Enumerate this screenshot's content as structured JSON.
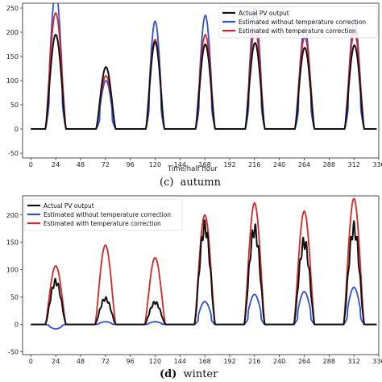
{
  "chart_data": [
    {
      "type": "line",
      "caption_letter": "(c)",
      "caption_word": "autumn",
      "xlabel": "Time/half hour",
      "ylabel": "",
      "xlim": [
        -8,
        336
      ],
      "ylim": [
        -60,
        260
      ],
      "xticks": [
        0,
        24,
        48,
        72,
        96,
        120,
        144,
        168,
        192,
        216,
        240,
        264,
        288,
        312,
        336
      ],
      "xtick_labels": [
        "0",
        "24",
        "48",
        "72",
        "96",
        "120",
        "144",
        "168",
        "192",
        "216",
        "240",
        "264",
        "288",
        "312",
        "336"
      ],
      "yticks": [
        -50,
        0,
        50,
        100,
        150,
        200,
        250
      ],
      "ytick_labels": [
        "-50",
        "0",
        "50",
        "100",
        "150",
        "200",
        "250"
      ],
      "legend_position": "top-right",
      "legend": [
        "Actual PV output",
        "Estimated without temperature correction",
        "Estimated with temperature correction"
      ],
      "series": [
        {
          "name": "Actual PV output",
          "color": "#111111",
          "days": [
            {
              "s": 14,
              "e": 34,
              "p": 195
            },
            {
              "s": 63,
              "e": 82,
              "p": 128
            },
            {
              "s": 111,
              "e": 129,
              "p": 180
            },
            {
              "s": 159,
              "e": 178,
              "p": 175
            },
            {
              "s": 207,
              "e": 226,
              "p": 178
            },
            {
              "s": 255,
              "e": 274,
              "p": 168
            },
            {
              "s": 303,
              "e": 322,
              "p": 173
            }
          ]
        },
        {
          "name": "Estimated without temperature correction",
          "color": "#2e4fd6",
          "days": [
            {
              "s": 14,
              "e": 34,
              "p": 285
            },
            {
              "s": 63,
              "e": 82,
              "p": 100
            },
            {
              "s": 111,
              "e": 129,
              "p": 223
            },
            {
              "s": 159,
              "e": 178,
              "p": 235
            },
            {
              "s": 207,
              "e": 226,
              "p": 250
            },
            {
              "s": 255,
              "e": 274,
              "p": 210
            },
            {
              "s": 303,
              "e": 322,
              "p": 225
            }
          ]
        },
        {
          "name": "Estimated with temperature correction",
          "color": "#d62728",
          "days": [
            {
              "s": 14,
              "e": 34,
              "p": 240
            },
            {
              "s": 63,
              "e": 82,
              "p": 110
            },
            {
              "s": 111,
              "e": 129,
              "p": 185
            },
            {
              "s": 159,
              "e": 178,
              "p": 195
            },
            {
              "s": 207,
              "e": 226,
              "p": 205
            },
            {
              "s": 255,
              "e": 274,
              "p": 190
            },
            {
              "s": 303,
              "e": 322,
              "p": 200
            }
          ]
        }
      ]
    },
    {
      "type": "line",
      "caption_letter": "(d)",
      "caption_word": "winter",
      "xlabel": "",
      "ylabel": "",
      "xlim": [
        -8,
        336
      ],
      "ylim": [
        -55,
        235
      ],
      "xticks": [
        0,
        24,
        48,
        72,
        96,
        120,
        144,
        168,
        192,
        216,
        240,
        264,
        288,
        312,
        336
      ],
      "xtick_labels": [
        "0",
        "24",
        "48",
        "72",
        "96",
        "120",
        "144",
        "168",
        "192",
        "216",
        "240",
        "264",
        "288",
        "312",
        "336"
      ],
      "yticks": [
        -50,
        0,
        50,
        100,
        150,
        200
      ],
      "ytick_labels": [
        "-50",
        "0",
        "50",
        "100",
        "150",
        "200"
      ],
      "legend_position": "top-left",
      "legend": [
        "Actual PV output",
        "Estimated without temperature correction",
        "Estimated with temperature correction"
      ],
      "series": [
        {
          "name": "Actual PV output",
          "color": "#111111",
          "days": [
            {
              "s": 14,
              "e": 34,
              "p": 78
            },
            {
              "s": 62,
              "e": 82,
              "p": 47
            },
            {
              "s": 110,
              "e": 130,
              "p": 40
            },
            {
              "s": 158,
              "e": 178,
              "p": 178
            },
            {
              "s": 206,
              "e": 226,
              "p": 173
            },
            {
              "s": 254,
              "e": 274,
              "p": 150
            },
            {
              "s": 302,
              "e": 322,
              "p": 175
            }
          ]
        },
        {
          "name": "Estimated without temperature correction",
          "color": "#2e4fd6",
          "days": [
            {
              "s": 14,
              "e": 34,
              "p": -8
            },
            {
              "s": 62,
              "e": 82,
              "p": 5
            },
            {
              "s": 110,
              "e": 130,
              "p": 5
            },
            {
              "s": 158,
              "e": 178,
              "p": 42
            },
            {
              "s": 206,
              "e": 226,
              "p": 55
            },
            {
              "s": 254,
              "e": 274,
              "p": 60
            },
            {
              "s": 302,
              "e": 322,
              "p": 68
            }
          ]
        },
        {
          "name": "Estimated with temperature correction",
          "color": "#d62728",
          "days": [
            {
              "s": 14,
              "e": 34,
              "p": 107
            },
            {
              "s": 62,
              "e": 82,
              "p": 145
            },
            {
              "s": 110,
              "e": 130,
              "p": 122
            },
            {
              "s": 158,
              "e": 178,
              "p": 200
            },
            {
              "s": 206,
              "e": 226,
              "p": 222
            },
            {
              "s": 254,
              "e": 274,
              "p": 207
            },
            {
              "s": 302,
              "e": 322,
              "p": 230
            }
          ]
        }
      ]
    }
  ]
}
